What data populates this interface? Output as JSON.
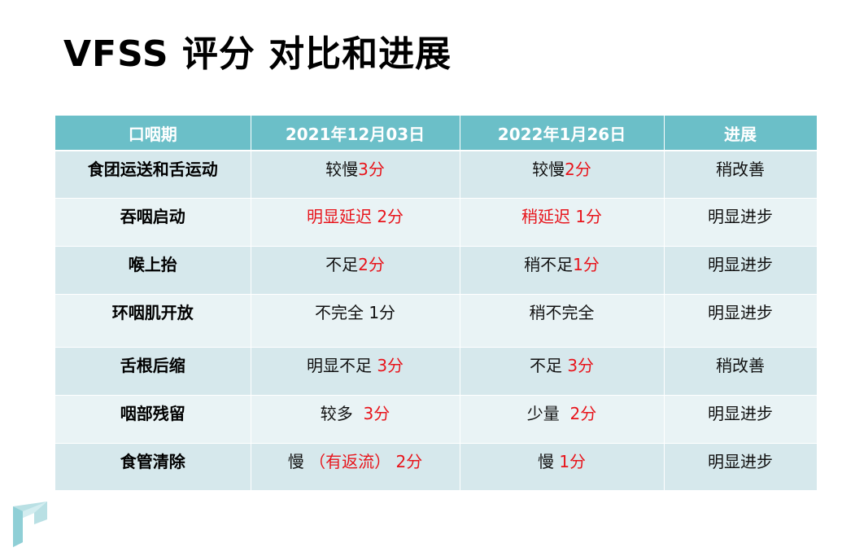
{
  "slide": {
    "title": "VFSS 评分 对比和进展"
  },
  "table": {
    "headers": [
      "口咽期",
      "2021年12月03日",
      "2022年1月26日",
      "进展"
    ],
    "rows": [
      {
        "phase": "食团运送和舌运动",
        "c2021": {
          "text": "较慢",
          "score": "3分"
        },
        "c2022": {
          "text": "较慢",
          "score": "2分"
        },
        "progress": "稍改善"
      },
      {
        "phase": "吞咽启动",
        "c2021": {
          "text": "明显延迟 ",
          "score": "2分",
          "text_red": true
        },
        "c2022": {
          "text": "稍延迟 ",
          "score": "1分",
          "text_red": true
        },
        "progress": "明显进步"
      },
      {
        "phase": "喉上抬",
        "c2021": {
          "text": "不足",
          "score": "2分"
        },
        "c2022": {
          "text": "稍不足",
          "score": "1分"
        },
        "progress": "明显进步"
      },
      {
        "phase": "环咽肌开放",
        "c2021": {
          "text": "不完全 ",
          "score": "1分",
          "score_dark": true
        },
        "c2022": {
          "text": "稍不完全",
          "score": ""
        },
        "progress": "明显进步"
      },
      {
        "phase": "舌根后缩",
        "c2021": {
          "text": "明显不足 ",
          "score": "3分"
        },
        "c2022": {
          "text": "不足 ",
          "score": "3分"
        },
        "progress": "稍改善"
      },
      {
        "phase": "咽部残留",
        "c2021": {
          "text": "较多  ",
          "score": "3分"
        },
        "c2022": {
          "text": "少量  ",
          "score": "2分"
        },
        "progress": "明显进步"
      },
      {
        "phase": "食管清除",
        "c2021": {
          "text": "慢 ",
          "score": "（有返流） 2分"
        },
        "c2022": {
          "text": "慢 ",
          "score": "1分"
        },
        "progress": "明显进步"
      }
    ]
  },
  "colors": {
    "header_bg": "#6bbfc8",
    "row_odd": "#d6e8ec",
    "row_even": "#e9f3f5",
    "score_red": "#e8141b"
  }
}
